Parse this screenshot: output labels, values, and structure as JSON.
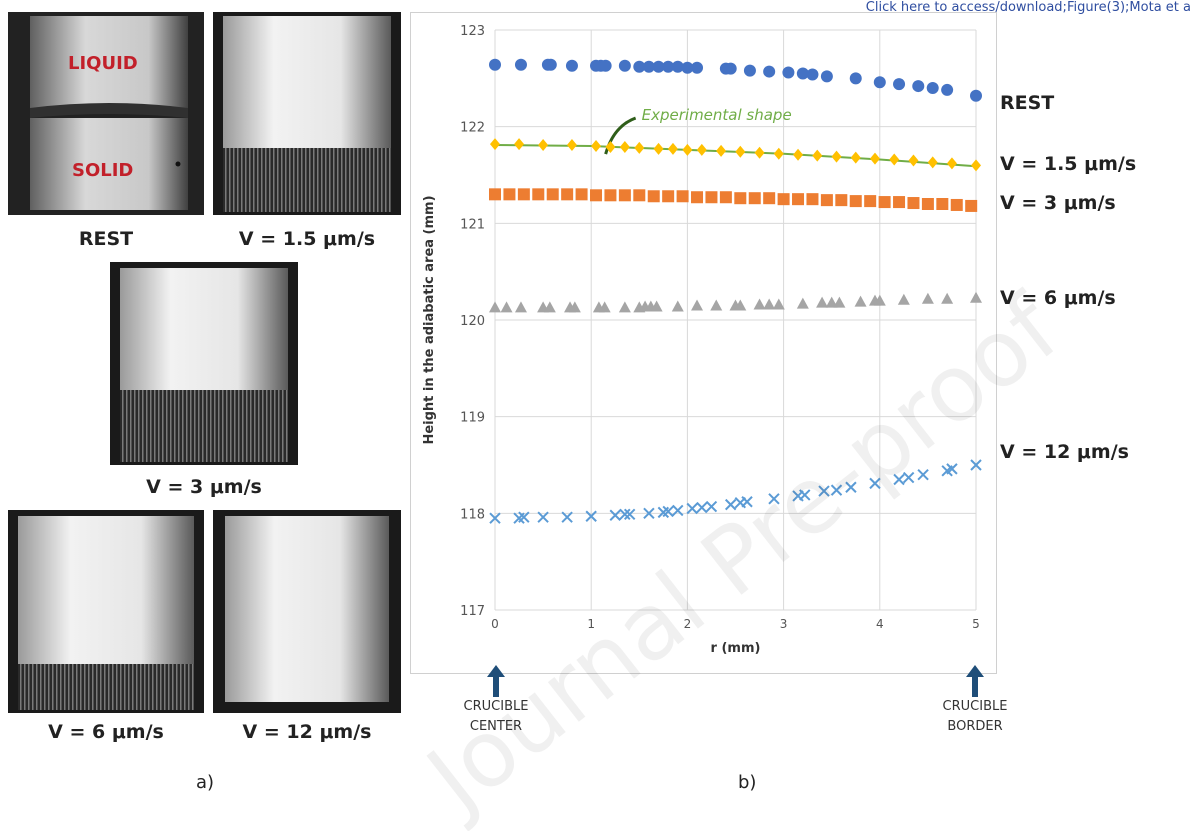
{
  "header_note": "Click here to access/download;Figure(3);Mota et a",
  "watermark": "Journal Pre-proof",
  "panel_a": {
    "label": "a)",
    "photos": [
      {
        "caption": "REST",
        "tags": [
          "LIQUID",
          "SOLID"
        ]
      },
      {
        "caption": "V = 1.5 μm/s"
      },
      {
        "caption": "V = 3 μm/s"
      },
      {
        "caption": "V = 6 μm/s"
      },
      {
        "caption": "V = 12 μm/s"
      }
    ]
  },
  "panel_b": {
    "label": "b)",
    "annotation": "Experimental shape",
    "left_marker": {
      "line1": "CRUCIBLE",
      "line2": "CENTER"
    },
    "right_marker": {
      "line1": "CRUCIBLE",
      "line2": "BORDER"
    }
  },
  "chart_data": {
    "type": "scatter",
    "title": "",
    "xlabel": "r (mm)",
    "ylabel": "Height in the adiabatic area (mm)",
    "xlim": [
      0,
      5
    ],
    "ylim": [
      117,
      123
    ],
    "xticks": [
      0,
      1,
      2,
      3,
      4,
      5
    ],
    "yticks": [
      117,
      118,
      119,
      120,
      121,
      122,
      123
    ],
    "grid": true,
    "colors": {
      "rest": "#4472c4",
      "v15": "#ffc000",
      "v3": "#ed7d31",
      "v6": "#a5a5a5",
      "v12": "#5b9bd5",
      "fit": "#70ad47"
    },
    "series": [
      {
        "name": "REST",
        "marker": "circle",
        "x": [
          0,
          0.27,
          0.55,
          0.58,
          0.8,
          1.05,
          1.1,
          1.15,
          1.35,
          1.5,
          1.6,
          1.7,
          1.8,
          1.9,
          2.0,
          2.1,
          2.4,
          2.45,
          2.65,
          2.85,
          3.05,
          3.2,
          3.3,
          3.45,
          3.75,
          4.0,
          4.2,
          4.4,
          4.55,
          4.7,
          5.0
        ],
        "y": [
          122.64,
          122.64,
          122.64,
          122.64,
          122.63,
          122.63,
          122.63,
          122.63,
          122.63,
          122.62,
          122.62,
          122.62,
          122.62,
          122.62,
          122.61,
          122.61,
          122.6,
          122.6,
          122.58,
          122.57,
          122.56,
          122.55,
          122.54,
          122.52,
          122.5,
          122.46,
          122.44,
          122.42,
          122.4,
          122.38,
          122.32
        ]
      },
      {
        "name": "V = 1.5 μm/s",
        "marker": "diamond",
        "x": [
          0,
          0.25,
          0.5,
          0.8,
          1.05,
          1.2,
          1.35,
          1.5,
          1.7,
          1.85,
          2.0,
          2.15,
          2.35,
          2.55,
          2.75,
          2.95,
          3.15,
          3.35,
          3.55,
          3.75,
          3.95,
          4.15,
          4.35,
          4.55,
          4.75,
          5.0
        ],
        "y": [
          121.82,
          121.82,
          121.81,
          121.81,
          121.8,
          121.79,
          121.79,
          121.78,
          121.77,
          121.77,
          121.76,
          121.76,
          121.75,
          121.74,
          121.73,
          121.72,
          121.71,
          121.7,
          121.69,
          121.68,
          121.67,
          121.66,
          121.65,
          121.63,
          121.62,
          121.6
        ]
      },
      {
        "name": "V = 3 μm/s",
        "marker": "square",
        "x": [
          0,
          0.15,
          0.3,
          0.45,
          0.6,
          0.75,
          0.9,
          1.05,
          1.2,
          1.35,
          1.5,
          1.65,
          1.8,
          1.95,
          2.1,
          2.25,
          2.4,
          2.55,
          2.7,
          2.85,
          3.0,
          3.15,
          3.3,
          3.45,
          3.6,
          3.75,
          3.9,
          4.05,
          4.2,
          4.35,
          4.5,
          4.65,
          4.8,
          4.95
        ],
        "y": [
          121.3,
          121.3,
          121.3,
          121.3,
          121.3,
          121.3,
          121.3,
          121.29,
          121.29,
          121.29,
          121.29,
          121.28,
          121.28,
          121.28,
          121.27,
          121.27,
          121.27,
          121.26,
          121.26,
          121.26,
          121.25,
          121.25,
          121.25,
          121.24,
          121.24,
          121.23,
          121.23,
          121.22,
          121.22,
          121.21,
          121.2,
          121.2,
          121.19,
          121.18
        ]
      },
      {
        "name": "V = 6 μm/s",
        "marker": "triangle",
        "x": [
          0,
          0.12,
          0.27,
          0.5,
          0.57,
          0.78,
          0.83,
          1.08,
          1.14,
          1.35,
          1.5,
          1.56,
          1.62,
          1.68,
          1.9,
          2.1,
          2.3,
          2.5,
          2.55,
          2.75,
          2.85,
          2.95,
          3.2,
          3.4,
          3.5,
          3.58,
          3.8,
          3.95,
          4.0,
          4.25,
          4.5,
          4.7,
          5.0
        ],
        "y": [
          120.13,
          120.13,
          120.13,
          120.13,
          120.13,
          120.13,
          120.13,
          120.13,
          120.13,
          120.13,
          120.13,
          120.14,
          120.14,
          120.14,
          120.14,
          120.15,
          120.15,
          120.15,
          120.15,
          120.16,
          120.16,
          120.16,
          120.17,
          120.18,
          120.18,
          120.18,
          120.19,
          120.2,
          120.2,
          120.21,
          120.22,
          120.22,
          120.23
        ]
      },
      {
        "name": "V = 12 μm/s",
        "marker": "cross",
        "x": [
          0,
          0.25,
          0.3,
          0.5,
          0.75,
          1.0,
          1.25,
          1.35,
          1.4,
          1.6,
          1.75,
          1.8,
          1.9,
          2.05,
          2.15,
          2.25,
          2.45,
          2.55,
          2.62,
          2.9,
          3.15,
          3.22,
          3.42,
          3.55,
          3.7,
          3.95,
          4.2,
          4.3,
          4.45,
          4.7,
          4.75,
          5.0
        ],
        "y": [
          117.95,
          117.95,
          117.96,
          117.96,
          117.96,
          117.97,
          117.98,
          117.99,
          117.99,
          118.0,
          118.01,
          118.02,
          118.03,
          118.05,
          118.06,
          118.07,
          118.09,
          118.11,
          118.12,
          118.15,
          118.18,
          118.19,
          118.23,
          118.24,
          118.27,
          118.31,
          118.35,
          118.37,
          118.4,
          118.44,
          118.46,
          118.5
        ]
      }
    ],
    "experimental_shape": {
      "x": [
        0,
        1,
        2,
        3,
        4,
        5
      ],
      "y": [
        121.81,
        121.8,
        121.76,
        121.72,
        121.66,
        121.59
      ]
    }
  }
}
